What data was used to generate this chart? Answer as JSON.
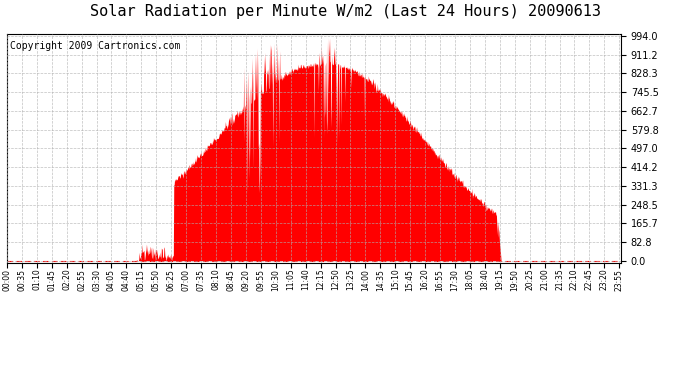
{
  "title": "Solar Radiation per Minute W/m2 (Last 24 Hours) 20090613",
  "copyright": "Copyright 2009 Cartronics.com",
  "y_ticks": [
    0.0,
    82.8,
    165.7,
    248.5,
    331.3,
    414.2,
    497.0,
    579.8,
    662.7,
    745.5,
    828.3,
    911.2,
    994.0
  ],
  "y_max": 994.0,
  "fill_color": "#ff0000",
  "dashed_line_color": "#ff0000",
  "bg_color": "#ffffff",
  "grid_color": "#b0b0b0",
  "title_fontsize": 11,
  "copyright_fontsize": 7
}
